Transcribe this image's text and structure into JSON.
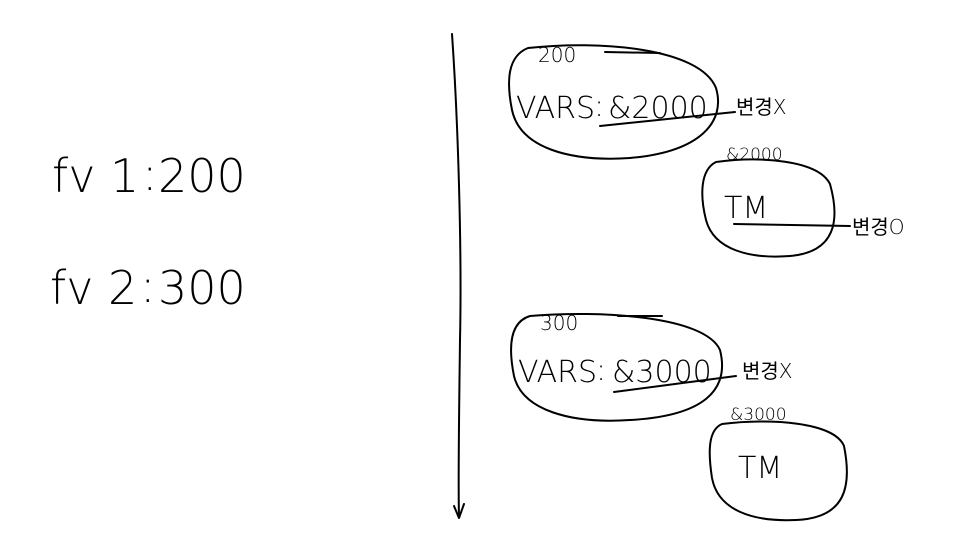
{
  "left": {
    "fv1": {
      "name": "fv 1",
      "sep": ":",
      "value": "200"
    },
    "fv2": {
      "name": "fv 2",
      "sep": ":",
      "value": "300"
    }
  },
  "top_group": {
    "vars_label": "VARS",
    "vars_sep": ":",
    "vars_address": "&2000",
    "vars_value_note": "200",
    "vars_change_note": "변경X",
    "tm_label": "TM",
    "tm_address_note": "&2000",
    "tm_change_note": "변경O"
  },
  "bottom_group": {
    "vars_label": "VARS",
    "vars_sep": ":",
    "vars_address": "&3000",
    "vars_value_note": "300",
    "vars_change_note": "변경X",
    "tm_label": "TM",
    "tm_address_note": "&3000"
  },
  "colors": {
    "ink": "#000000",
    "background": "#ffffff"
  }
}
